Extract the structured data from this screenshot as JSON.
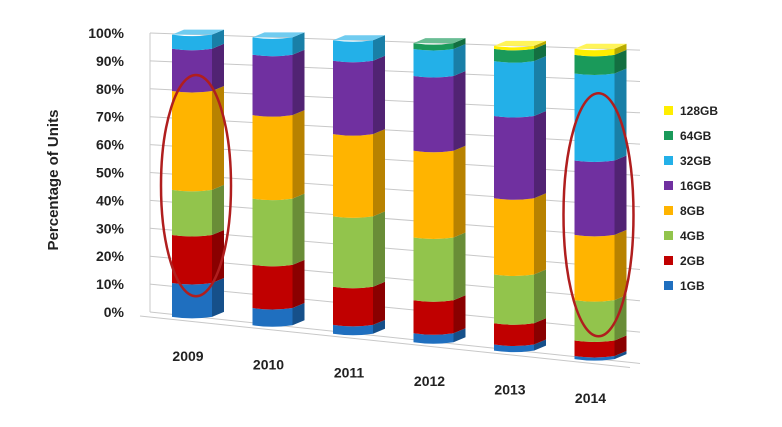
{
  "chart_data": {
    "type": "bar",
    "stacked": true,
    "ylabel": "Percentage of Units",
    "ylim": [
      0,
      100
    ],
    "y_ticks": [
      "0%",
      "10%",
      "20%",
      "30%",
      "40%",
      "50%",
      "60%",
      "70%",
      "80%",
      "90%",
      "100%"
    ],
    "categories": [
      "2009",
      "2010",
      "2011",
      "2012",
      "2013",
      "2014"
    ],
    "legend_position": "right",
    "series": [
      {
        "name": "1GB",
        "color": "#1f6fbf",
        "values": [
          12,
          6,
          3,
          3,
          2,
          1
        ]
      },
      {
        "name": "2GB",
        "color": "#c00000",
        "values": [
          17,
          15,
          13,
          11,
          7,
          5
        ]
      },
      {
        "name": "4GB",
        "color": "#92c44c",
        "values": [
          16,
          23,
          24,
          21,
          16,
          13
        ]
      },
      {
        "name": "8GB",
        "color": "#ffb400",
        "values": [
          35,
          29,
          28,
          29,
          25,
          21
        ]
      },
      {
        "name": "16GB",
        "color": "#7030a0",
        "values": [
          15,
          21,
          25,
          25,
          27,
          24
        ]
      },
      {
        "name": "32GB",
        "color": "#23b0e8",
        "values": [
          5,
          6,
          7,
          9,
          18,
          28
        ]
      },
      {
        "name": "64GB",
        "color": "#1a9a5a",
        "values": [
          0,
          0,
          0,
          2,
          4,
          6
        ]
      },
      {
        "name": "128GB",
        "color": "#ffee00",
        "values": [
          0,
          0,
          0,
          0,
          1,
          2
        ]
      }
    ],
    "highlighted_categories": [
      "2009",
      "2014"
    ],
    "highlight_color": "#b01e1e"
  }
}
